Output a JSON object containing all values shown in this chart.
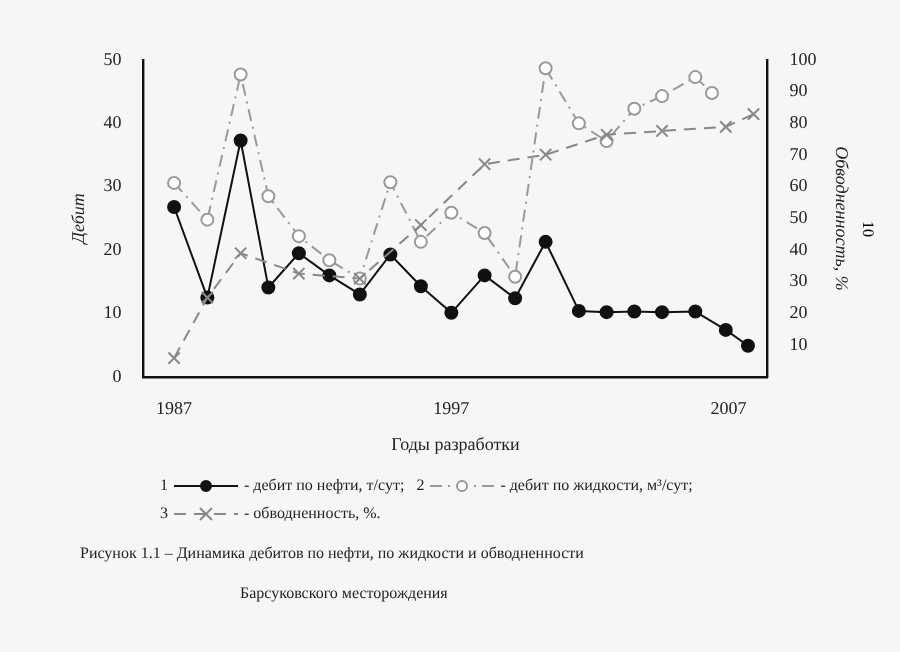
{
  "chart_data": {
    "type": "line",
    "xlabel": "Годы разработки",
    "ylabel": "Дебит",
    "y2label": "Обводненность, %",
    "xlim": [
      1985.9,
      2008.4
    ],
    "xticks": [
      1987,
      1997,
      2007
    ],
    "ylim": [
      0,
      50
    ],
    "yticks": [
      0,
      10,
      20,
      30,
      40,
      50
    ],
    "y2lim": [
      0,
      100
    ],
    "y2ticks": [
      10,
      20,
      30,
      40,
      50,
      60,
      70,
      80,
      90,
      100
    ],
    "grid": false,
    "legend": "bottom",
    "series": [
      {
        "name": "- дебит по нефти, т/сут;",
        "color": "#111111",
        "marker": "circle",
        "line_style": "solid",
        "x": [
          1987,
          1988.2,
          1989.4,
          1990.4,
          1991.5,
          1992.6,
          1993.7,
          1994.8,
          1995.9,
          1997,
          1998.2,
          1999.3,
          2000.4,
          2001.6,
          2002.6,
          2003.6,
          2004.6,
          2005.8,
          2006.9,
          2007.7
        ],
        "values": [
          26.8,
          12.5,
          37.3,
          14.1,
          19.5,
          16.0,
          13.0,
          19.3,
          14.3,
          10.1,
          16.0,
          12.4,
          21.3,
          10.4,
          10.2,
          10.3,
          10.2,
          10.3,
          7.4,
          4.9
        ]
      },
      {
        "name": "- дебит по жидкости, м³/сут;",
        "color": "#999999",
        "marker": "circle",
        "line_style": "dashdot",
        "x": [
          1987,
          1988.2,
          1989.4,
          1990.4,
          1991.5,
          1992.6,
          1993.7,
          1994.8,
          1995.9,
          1997,
          1998.2,
          1999.3,
          2000.4,
          2001.6,
          2002.6,
          2003.6,
          2004.6,
          2005.8,
          2006.4
        ],
        "values": [
          30.6,
          24.8,
          47.7,
          28.5,
          22.2,
          18.4,
          15.5,
          30.7,
          21.3,
          25.9,
          22.7,
          15.8,
          48.7,
          40.0,
          37.2,
          42.3,
          44.3,
          47.3,
          44.8
        ]
      },
      {
        "name": "- обводненность, %.",
        "color": "#888888",
        "marker": "cross",
        "line_style": "dashed",
        "axis": "y2",
        "x": [
          1987,
          1988.2,
          1989.4,
          1991.5,
          1993.7,
          1995.9,
          1998.2,
          2000.4,
          2002.6,
          2004.6,
          2006.9,
          2007.9
        ],
        "values": [
          5.9,
          25,
          39,
          32.6,
          31,
          47.9,
          67.1,
          70.1,
          76.4,
          77.6,
          78.9,
          82.9
        ]
      }
    ],
    "annotations": [
      "Рисунок 1.1 – Динамика дебитов по нефти, по жидкости и обводненности",
      "Барсуковского месторождения",
      "10",
      "1",
      "2",
      "3"
    ]
  }
}
